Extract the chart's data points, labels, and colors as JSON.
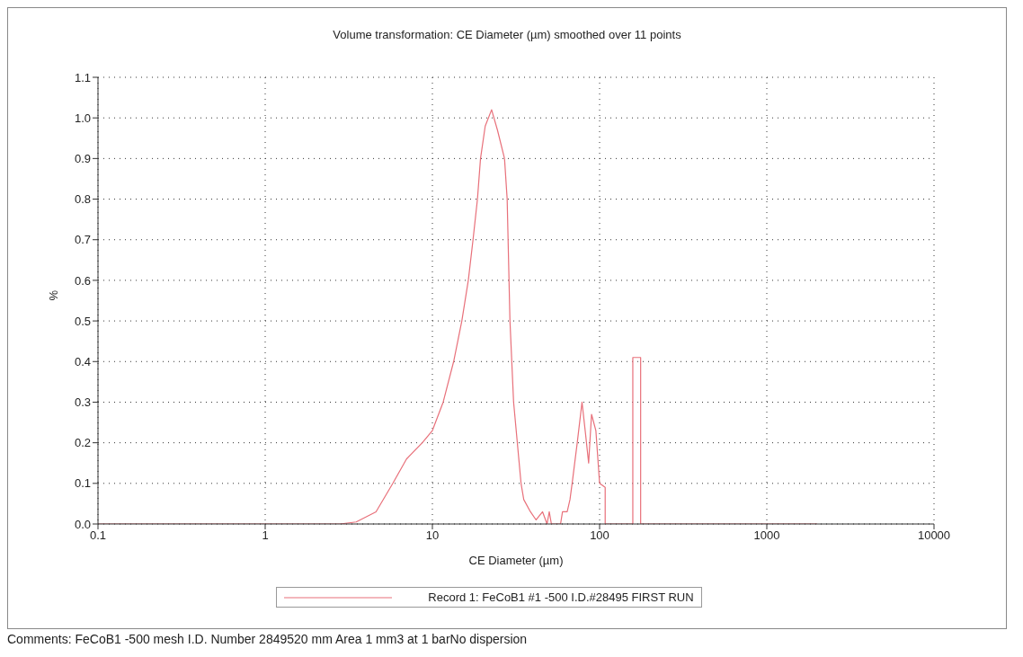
{
  "chart_data": {
    "type": "line",
    "title": "Volume transformation: CE Diameter (µm) smoothed over 11 points",
    "xlabel": "CE Diameter (µm)",
    "ylabel": "%",
    "log": "x",
    "grid": true,
    "legend": "bottom",
    "marker": "none",
    "line_style": "solid",
    "xlim": [
      0.1,
      10000
    ],
    "xticks": [
      0.1,
      1,
      10,
      100,
      1000,
      10000
    ],
    "ylim": [
      0,
      1.1
    ],
    "yticks": [
      {
        "value": 0,
        "label": "0.0"
      },
      0.1,
      0.2,
      0.3,
      0.4,
      0.5,
      0.6,
      0.7,
      0.8,
      0.9,
      {
        "value": 1,
        "label": "1.0"
      },
      1.1
    ],
    "series": [
      {
        "name": "Record 1: FeCoB1 #1 -500 I.D.#28495 FIRST RUN",
        "color": "#e8707a",
        "x": [
          0.1,
          1,
          2.8,
          3.5,
          4.6,
          5.8,
          7,
          8.7,
          10,
          11.6,
          13.4,
          15,
          16.4,
          17.5,
          18.6,
          19.4,
          20.7,
          22.6,
          24.5,
          27,
          28,
          29.1,
          30.6,
          33.9,
          35.2,
          38.6,
          41.7,
          45.6,
          48.5,
          50,
          51.5,
          58.4,
          60,
          64,
          66.5,
          69,
          73.5,
          78.5,
          82.5,
          86,
          89.5,
          95,
          100,
          108,
          108,
          158,
          158,
          176,
          176,
          2000
        ],
        "values": [
          0,
          0,
          0,
          0.005,
          0.03,
          0.1,
          0.16,
          0.2,
          0.23,
          0.3,
          0.4,
          0.5,
          0.6,
          0.7,
          0.8,
          0.9,
          0.98,
          1.02,
          0.97,
          0.9,
          0.8,
          0.5,
          0.3,
          0.1,
          0.06,
          0.03,
          0.01,
          0.03,
          0,
          0.03,
          0,
          0,
          0.03,
          0.03,
          0.06,
          0.11,
          0.2,
          0.3,
          0.22,
          0.15,
          0.27,
          0.23,
          0.1,
          0.09,
          0,
          0,
          0.41,
          0.41,
          0,
          0
        ]
      }
    ],
    "annotations": [
      "Comments: FeCoB1 -500 mesh I.D. Number 2849520 mm Area 1 mm3 at 1 barNo dispersion"
    ]
  }
}
